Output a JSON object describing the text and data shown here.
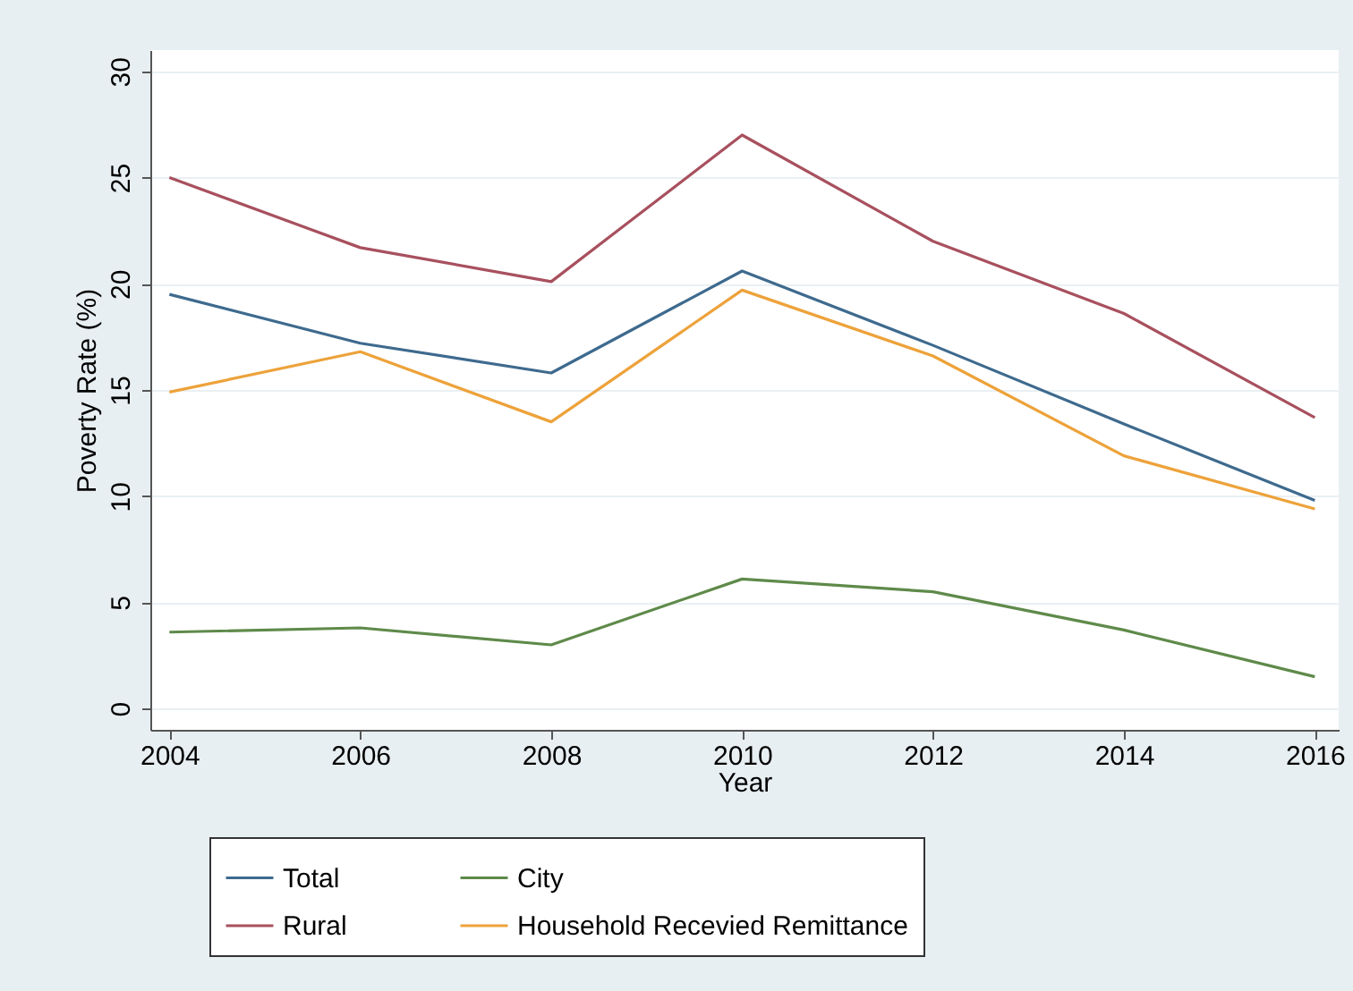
{
  "chart_data": {
    "type": "line",
    "xlabel": "Year",
    "ylabel": "Poverty Rate (%)",
    "x": [
      2004,
      2006,
      2008,
      2010,
      2012,
      2014,
      2016
    ],
    "series": [
      {
        "name": "Total",
        "color": "#3e6a8e",
        "values": [
          19.5,
          17.2,
          15.8,
          20.6,
          17.1,
          13.4,
          9.8
        ]
      },
      {
        "name": "Rural",
        "color": "#a8505e",
        "values": [
          25,
          21.7,
          20.1,
          27,
          22,
          18.6,
          13.7
        ]
      },
      {
        "name": "City",
        "color": "#5f8a4a",
        "values": [
          3.6,
          3.8,
          3.0,
          6.1,
          5.5,
          3.7,
          1.5
        ]
      },
      {
        "name": "Household Recevied Remittance",
        "color": "#eda23a",
        "values": [
          14.9,
          16.8,
          13.5,
          19.7,
          16.6,
          11.9,
          9.4
        ]
      }
    ],
    "xlim": [
      2003.8,
      2016.25
    ],
    "xticks": [
      2004,
      2006,
      2008,
      2010,
      2012,
      2014,
      2016
    ],
    "ylim": [
      -1,
      31
    ],
    "yticks": [
      0,
      5,
      10,
      15,
      20,
      25,
      30
    ],
    "grid": "y",
    "legend": "bottom",
    "marker": "none",
    "line_style": "solid"
  }
}
